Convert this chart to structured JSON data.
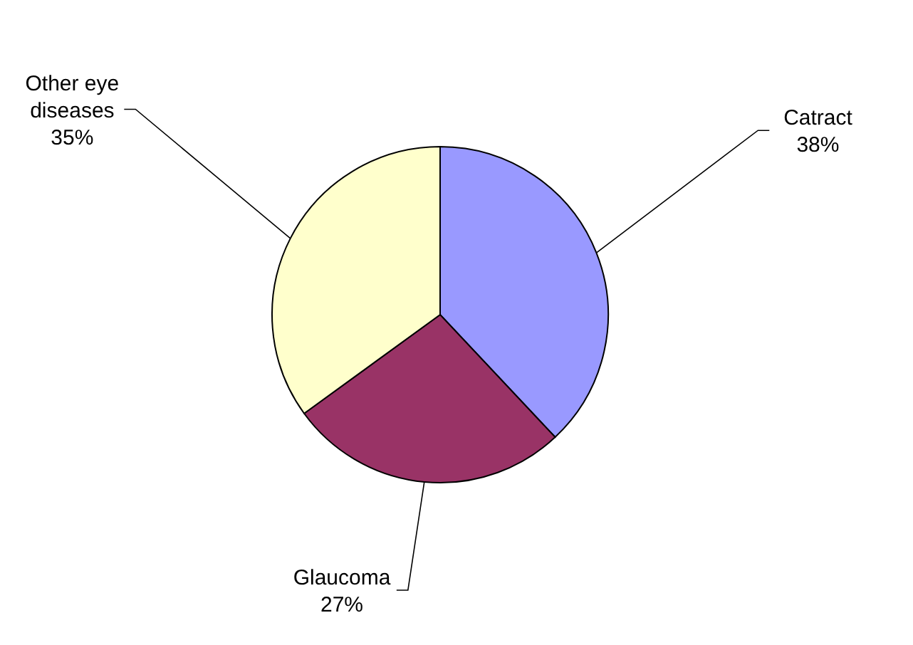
{
  "chart_data": {
    "type": "pie",
    "categories": [
      "Catract",
      "Glaucoma",
      "Other eye diseases"
    ],
    "values": [
      38,
      27,
      35
    ],
    "value_labels": [
      "38%",
      "27%",
      "35%"
    ],
    "colors": [
      "#9999ff",
      "#993366",
      "#ffffcc"
    ]
  }
}
